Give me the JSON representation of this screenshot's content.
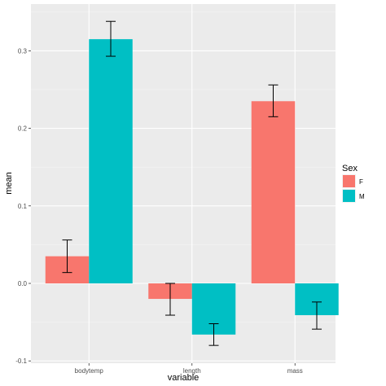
{
  "chart_data": {
    "type": "bar",
    "xlabel": "variable",
    "ylabel": "mean",
    "categories": [
      "bodytemp",
      "length",
      "mass"
    ],
    "ylim": [
      -0.1,
      0.35
    ],
    "yticks": [
      -0.1,
      0.0,
      0.1,
      0.2,
      0.3
    ],
    "ytick_labels": [
      "-0.1",
      "0.0",
      "0.1",
      "0.2",
      "0.3"
    ],
    "grid": true,
    "legend": {
      "title": "Sex",
      "position": "right"
    },
    "series": [
      {
        "name": "F",
        "color": "#F8766D",
        "values": [
          0.035,
          -0.02,
          0.235
        ],
        "error_low": [
          0.014,
          -0.041,
          0.215
        ],
        "error_high": [
          0.056,
          0.0,
          0.256
        ]
      },
      {
        "name": "M",
        "color": "#00BFC4",
        "values": [
          0.315,
          -0.066,
          -0.041
        ],
        "error_low": [
          0.293,
          -0.08,
          -0.059
        ],
        "error_high": [
          0.338,
          -0.052,
          -0.024
        ]
      }
    ]
  }
}
